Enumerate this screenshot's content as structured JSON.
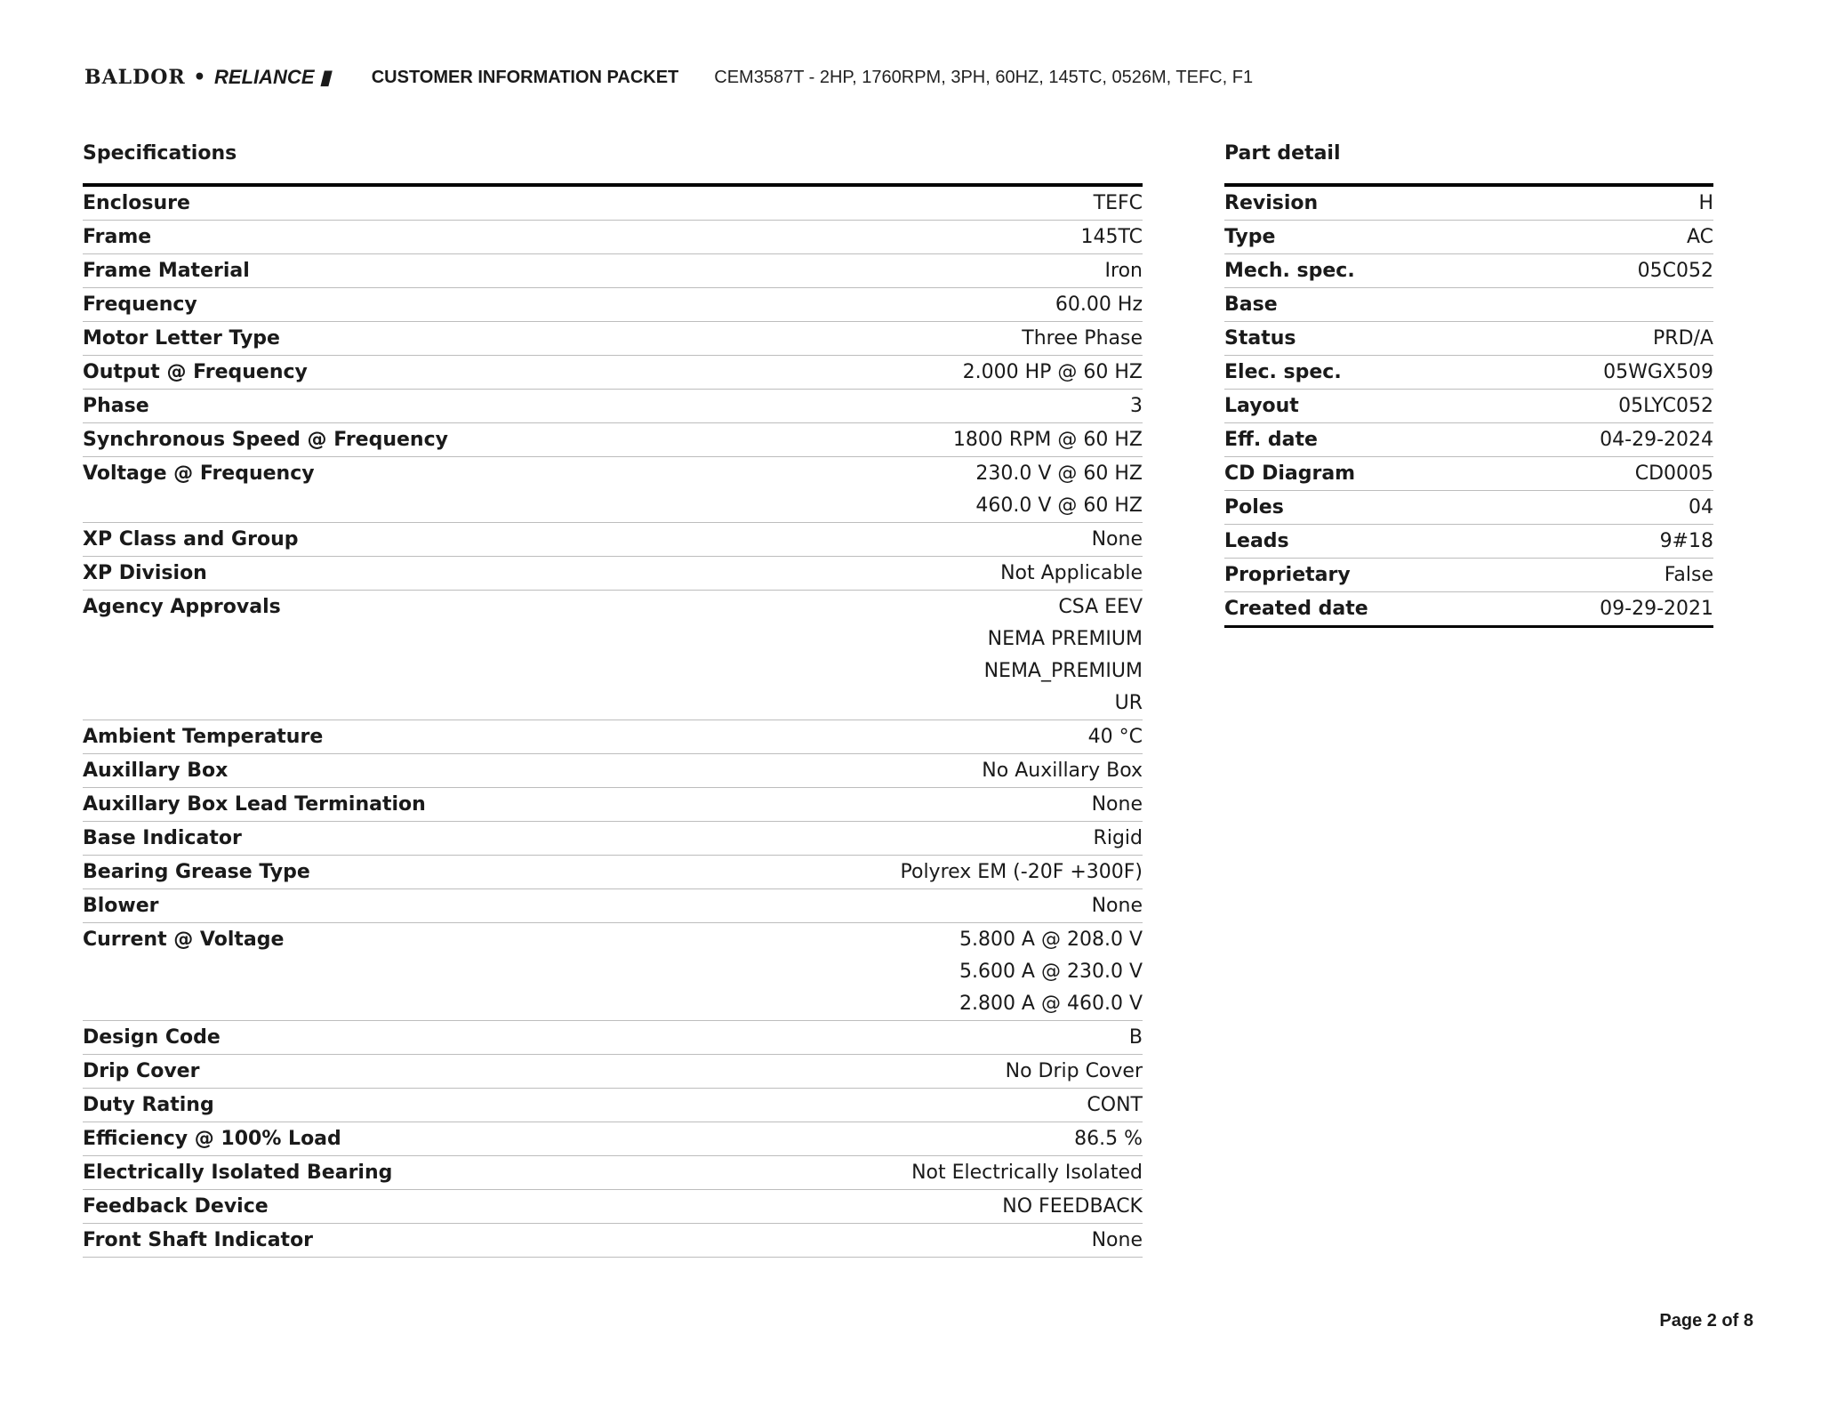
{
  "header": {
    "logo": "BALDOR • RELIANCE",
    "packet_title": "CUSTOMER INFORMATION PACKET",
    "description": "CEM3587T - 2HP, 1760RPM, 3PH, 60HZ, 145TC, 0526M, TEFC, F1"
  },
  "specifications": {
    "title": "Specifications",
    "rows": [
      {
        "label": "Enclosure",
        "values": [
          "TEFC"
        ]
      },
      {
        "label": "Frame",
        "values": [
          "145TC"
        ]
      },
      {
        "label": "Frame Material",
        "values": [
          "Iron"
        ]
      },
      {
        "label": "Frequency",
        "values": [
          "60.00 Hz"
        ]
      },
      {
        "label": "Motor Letter Type",
        "values": [
          "Three Phase"
        ]
      },
      {
        "label": "Output @ Frequency",
        "values": [
          "2.000 HP @ 60 HZ"
        ]
      },
      {
        "label": "Phase",
        "values": [
          "3"
        ]
      },
      {
        "label": "Synchronous Speed @ Frequency",
        "values": [
          "1800 RPM @ 60 HZ"
        ]
      },
      {
        "label": "Voltage @ Frequency",
        "values": [
          "230.0 V @ 60 HZ",
          "460.0 V @ 60 HZ"
        ]
      },
      {
        "label": "XP Class and Group",
        "values": [
          "None"
        ]
      },
      {
        "label": "XP Division",
        "values": [
          "Not Applicable"
        ]
      },
      {
        "label": "Agency Approvals",
        "values": [
          "CSA EEV",
          "NEMA PREMIUM",
          "NEMA_PREMIUM",
          "UR"
        ]
      },
      {
        "label": "Ambient Temperature",
        "values": [
          "40 °C"
        ]
      },
      {
        "label": "Auxillary Box",
        "values": [
          "No Auxillary Box"
        ]
      },
      {
        "label": "Auxillary Box Lead Termination",
        "values": [
          "None"
        ]
      },
      {
        "label": "Base Indicator",
        "values": [
          "Rigid"
        ]
      },
      {
        "label": "Bearing Grease Type",
        "values": [
          "Polyrex EM (-20F +300F)"
        ]
      },
      {
        "label": "Blower",
        "values": [
          "None"
        ]
      },
      {
        "label": "Current @ Voltage",
        "values": [
          "5.800 A @ 208.0 V",
          "5.600 A @ 230.0 V",
          "2.800 A @ 460.0 V"
        ]
      },
      {
        "label": "Design Code",
        "values": [
          "B"
        ]
      },
      {
        "label": "Drip Cover",
        "values": [
          "No Drip Cover"
        ]
      },
      {
        "label": "Duty Rating",
        "values": [
          "CONT"
        ]
      },
      {
        "label": "Efficiency @ 100% Load",
        "values": [
          "86.5 %"
        ]
      },
      {
        "label": "Electrically Isolated Bearing",
        "values": [
          "Not Electrically Isolated"
        ]
      },
      {
        "label": "Feedback Device",
        "values": [
          "NO FEEDBACK"
        ]
      },
      {
        "label": "Front Shaft Indicator",
        "values": [
          "None"
        ]
      }
    ]
  },
  "part_detail": {
    "title": "Part detail",
    "rows": [
      {
        "label": "Revision",
        "values": [
          "H"
        ]
      },
      {
        "label": "Type",
        "values": [
          "AC"
        ]
      },
      {
        "label": "Mech. spec.",
        "values": [
          "05C052"
        ]
      },
      {
        "label": "Base",
        "values": [
          ""
        ]
      },
      {
        "label": "Status",
        "values": [
          "PRD/A"
        ]
      },
      {
        "label": "Elec. spec.",
        "values": [
          "05WGX509"
        ]
      },
      {
        "label": "Layout",
        "values": [
          "05LYC052"
        ]
      },
      {
        "label": "Eff. date",
        "values": [
          "04-29-2024"
        ]
      },
      {
        "label": "CD Diagram",
        "values": [
          "CD0005"
        ]
      },
      {
        "label": "Poles",
        "values": [
          "04"
        ]
      },
      {
        "label": "Leads",
        "values": [
          "9#18"
        ]
      },
      {
        "label": "Proprietary",
        "values": [
          "False"
        ]
      },
      {
        "label": "Created date",
        "values": [
          "09-29-2021"
        ]
      }
    ]
  },
  "footer": {
    "page": "Page 2 of 8"
  }
}
